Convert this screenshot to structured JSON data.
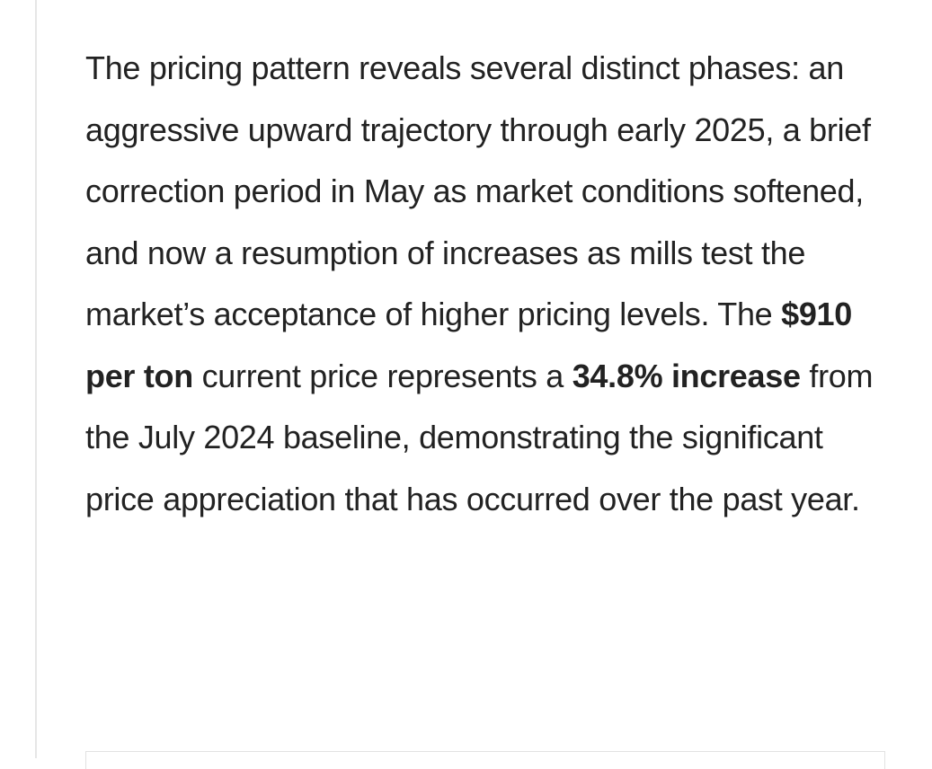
{
  "paragraph": {
    "segments": [
      {
        "text": "The pricing pattern reveals several distinct phases: an aggressive upward trajectory through early 2025, a brief correction period in May as market conditions softened, and now a resumption of increases as mills test the market’s acceptance of higher pricing levels. The ",
        "bold": false
      },
      {
        "text": "$910 per ton",
        "bold": true
      },
      {
        "text": " current price represents a ",
        "bold": false
      },
      {
        "text": "34.8% increase",
        "bold": true
      },
      {
        "text": " from the July 2024 baseline, demonstrating the significant price appreciation that has occurred over the past year.",
        "bold": false
      }
    ]
  }
}
